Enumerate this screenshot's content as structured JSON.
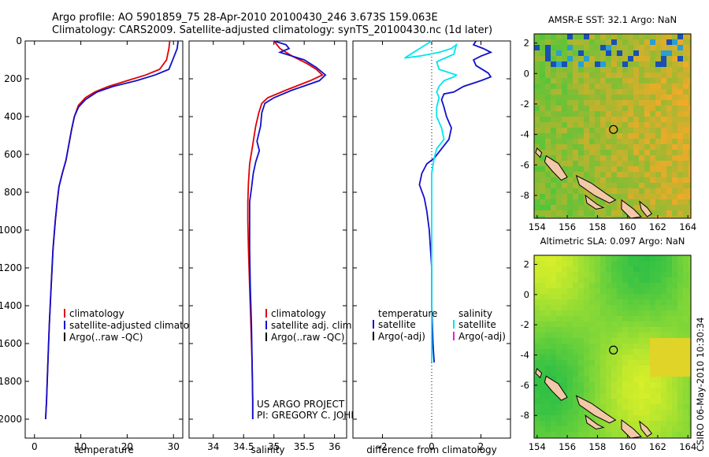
{
  "header": {
    "line1": "Argo profile: AO 5901859_75 28-Apr-2010 20100430_246 3.673S 159.063E",
    "line2": "Climatology: CARS2009. Satellite-adjusted climatology: synTS_20100430.nc (1d later)"
  },
  "chart_data": [
    {
      "type": "line",
      "xlabel": "temperature",
      "xlim": [
        -2,
        32
      ],
      "xticks": [
        0,
        10,
        20,
        30
      ],
      "ylim": [
        0,
        2100
      ],
      "yticks": [
        0,
        200,
        400,
        600,
        800,
        1000,
        1200,
        1400,
        1600,
        1800,
        2000
      ],
      "y_reversed": true,
      "series": [
        {
          "name": "climatology",
          "color": "#e00000",
          "points": [
            [
              29.2,
              0
            ],
            [
              29.0,
              40
            ],
            [
              28.5,
              100
            ],
            [
              27.0,
              150
            ],
            [
              24.0,
              180
            ],
            [
              20.0,
              210
            ],
            [
              16.0,
              240
            ],
            [
              13.0,
              270
            ],
            [
              11.0,
              300
            ],
            [
              9.5,
              340
            ],
            [
              8.6,
              400
            ],
            [
              8.0,
              470
            ],
            [
              7.4,
              550
            ],
            [
              6.8,
              630
            ],
            [
              6.0,
              700
            ],
            [
              5.3,
              770
            ],
            [
              4.9,
              850
            ],
            [
              4.5,
              950
            ],
            [
              4.0,
              1100
            ],
            [
              3.6,
              1300
            ],
            [
              3.2,
              1500
            ],
            [
              2.9,
              1700
            ],
            [
              2.6,
              1900
            ],
            [
              2.4,
              2000
            ]
          ]
        },
        {
          "name": "satellite-adjusted climatology",
          "color": "#1010cc",
          "points": [
            [
              31.0,
              0
            ],
            [
              30.8,
              40
            ],
            [
              30.0,
              90
            ],
            [
              29.0,
              150
            ],
            [
              26.0,
              180
            ],
            [
              22.0,
              210
            ],
            [
              17.0,
              240
            ],
            [
              13.5,
              270
            ],
            [
              11.0,
              310
            ],
            [
              9.5,
              350
            ],
            [
              8.6,
              400
            ],
            [
              8.0,
              470
            ],
            [
              7.4,
              550
            ],
            [
              6.8,
              630
            ],
            [
              6.0,
              700
            ],
            [
              5.3,
              770
            ],
            [
              4.9,
              850
            ],
            [
              4.5,
              950
            ],
            [
              4.0,
              1100
            ],
            [
              3.6,
              1300
            ],
            [
              3.2,
              1500
            ],
            [
              2.9,
              1700
            ],
            [
              2.6,
              1900
            ],
            [
              2.4,
              2000
            ]
          ]
        }
      ],
      "legend": [
        "climatology",
        "satellite-adjusted climatology",
        "Argo(..raw -QC)"
      ],
      "legend_colors": [
        "#e00000",
        "#1010cc",
        "#000000"
      ]
    },
    {
      "type": "line",
      "xlabel": "salinity",
      "xlim": [
        33.6,
        36.2
      ],
      "xticks": [
        34,
        34.5,
        35,
        35.5,
        36
      ],
      "xtick_labels": [
        "34",
        "34.5",
        "35",
        "35.5",
        "36"
      ],
      "ylim": [
        0,
        2100
      ],
      "y_reversed": true,
      "series": [
        {
          "name": "climatology",
          "color": "#e00000",
          "points": [
            [
              35.0,
              0
            ],
            [
              35.1,
              40
            ],
            [
              35.3,
              80
            ],
            [
              35.55,
              120
            ],
            [
              35.7,
              150
            ],
            [
              35.8,
              180
            ],
            [
              35.6,
              210
            ],
            [
              35.2,
              260
            ],
            [
              34.9,
              300
            ],
            [
              34.8,
              330
            ],
            [
              34.75,
              380
            ],
            [
              34.7,
              450
            ],
            [
              34.65,
              550
            ],
            [
              34.6,
              650
            ],
            [
              34.58,
              750
            ],
            [
              34.57,
              850
            ],
            [
              34.57,
              950
            ],
            [
              34.58,
              1100
            ],
            [
              34.6,
              1300
            ],
            [
              34.62,
              1500
            ],
            [
              34.64,
              1700
            ],
            [
              34.65,
              1900
            ],
            [
              34.65,
              2000
            ]
          ]
        },
        {
          "name": "satellite adj. clim.",
          "color": "#1010cc",
          "points": [
            [
              35.0,
              0
            ],
            [
              35.2,
              20
            ],
            [
              35.25,
              40
            ],
            [
              35.1,
              60
            ],
            [
              35.5,
              100
            ],
            [
              35.7,
              140
            ],
            [
              35.85,
              180
            ],
            [
              35.75,
              210
            ],
            [
              35.3,
              260
            ],
            [
              35.0,
              300
            ],
            [
              34.85,
              330
            ],
            [
              34.8,
              380
            ],
            [
              34.78,
              450
            ],
            [
              34.72,
              530
            ],
            [
              34.76,
              580
            ],
            [
              34.7,
              640
            ],
            [
              34.66,
              700
            ],
            [
              34.63,
              780
            ],
            [
              34.6,
              850
            ],
            [
              34.6,
              950
            ],
            [
              34.6,
              1100
            ],
            [
              34.61,
              1300
            ],
            [
              34.63,
              1500
            ],
            [
              34.64,
              1700
            ],
            [
              34.65,
              1900
            ],
            [
              34.65,
              2000
            ]
          ]
        }
      ],
      "legend": [
        "climatology",
        "satellite adj. clim.",
        "Argo(..raw -QC)"
      ],
      "legend_colors": [
        "#e00000",
        "#1010cc",
        "#000000"
      ],
      "annotation": [
        "US ARGO PROJECT",
        "PI: GREGORY C. JOHNSON"
      ]
    },
    {
      "type": "line",
      "xlabel": "difference from climatology",
      "xlim": [
        -3.2,
        3.2
      ],
      "xticks": [
        -2,
        0,
        2
      ],
      "ylim": [
        0,
        2100
      ],
      "y_reversed": true,
      "zero_line": "dotted",
      "series": [
        {
          "name": "temperature satellite",
          "color": "#1010cc",
          "points": [
            [
              1.8,
              0
            ],
            [
              1.7,
              20
            ],
            [
              2.1,
              40
            ],
            [
              2.4,
              60
            ],
            [
              2.0,
              80
            ],
            [
              1.7,
              100
            ],
            [
              1.8,
              130
            ],
            [
              2.3,
              170
            ],
            [
              2.4,
              190
            ],
            [
              2.0,
              210
            ],
            [
              1.3,
              240
            ],
            [
              0.9,
              270
            ],
            [
              0.5,
              280
            ],
            [
              0.4,
              310
            ],
            [
              0.5,
              350
            ],
            [
              0.6,
              400
            ],
            [
              0.8,
              460
            ],
            [
              0.7,
              520
            ],
            [
              0.4,
              570
            ],
            [
              0.1,
              620
            ],
            [
              -0.2,
              650
            ],
            [
              -0.4,
              700
            ],
            [
              -0.5,
              760
            ],
            [
              -0.3,
              830
            ],
            [
              -0.2,
              900
            ],
            [
              -0.1,
              1000
            ],
            [
              0.0,
              1200
            ],
            [
              0.0,
              1400
            ],
            [
              0.05,
              1600
            ],
            [
              0.1,
              1700
            ]
          ]
        },
        {
          "name": "salinity satellite",
          "color": "#00e5ee",
          "points": [
            [
              0.0,
              0
            ],
            [
              -1.1,
              90
            ],
            [
              -0.5,
              80
            ],
            [
              0.3,
              60
            ],
            [
              0.8,
              40
            ],
            [
              1.0,
              20
            ],
            [
              0.9,
              70
            ],
            [
              0.2,
              110
            ],
            [
              0.3,
              150
            ],
            [
              1.0,
              180
            ],
            [
              0.9,
              190
            ],
            [
              0.5,
              210
            ],
            [
              0.3,
              240
            ],
            [
              0.2,
              270
            ],
            [
              0.3,
              300
            ],
            [
              0.2,
              350
            ],
            [
              0.2,
              400
            ],
            [
              0.4,
              460
            ],
            [
              0.5,
              520
            ],
            [
              0.2,
              570
            ],
            [
              0.1,
              620
            ],
            [
              0.0,
              700
            ],
            [
              0.0,
              900
            ],
            [
              0.0,
              1100
            ],
            [
              0.0,
              1300
            ],
            [
              0.0,
              1500
            ],
            [
              0.0,
              1700
            ]
          ]
        }
      ],
      "legend_left_header": "temperature",
      "legend_right_header": "salinity",
      "legend_left": [
        "satellite",
        "Argo(-adj)"
      ],
      "legend_left_colors": [
        "#1010cc",
        "#000000"
      ],
      "legend_right": [
        "satellite",
        "Argo(-adj)"
      ],
      "legend_right_colors": [
        "#00e5ee",
        "#e020e0"
      ]
    }
  ],
  "maps": [
    {
      "title": "AMSR-E SST: 32.1 Argo: NaN",
      "xticks": [
        154,
        156,
        158,
        160,
        162,
        164
      ],
      "yticks": [
        2,
        0,
        -2,
        -4,
        -6,
        -8
      ],
      "xlim": [
        153.8,
        164.2
      ],
      "ylim": [
        -9.5,
        2.6
      ],
      "argo_lon": 159.063,
      "argo_lat": -3.673
    },
    {
      "title": "Altimetric SLA: 0.097 Argo: NaN",
      "xticks": [
        154,
        156,
        158,
        160,
        162,
        164
      ],
      "yticks": [
        2,
        0,
        -2,
        -4,
        -6,
        -8
      ],
      "xlim": [
        153.8,
        164.2
      ],
      "ylim": [
        -9.5,
        2.6
      ],
      "argo_lon": 159.063,
      "argo_lat": -3.673
    }
  ],
  "side_label": "CSIRO 06-May-2010 10:30:34"
}
